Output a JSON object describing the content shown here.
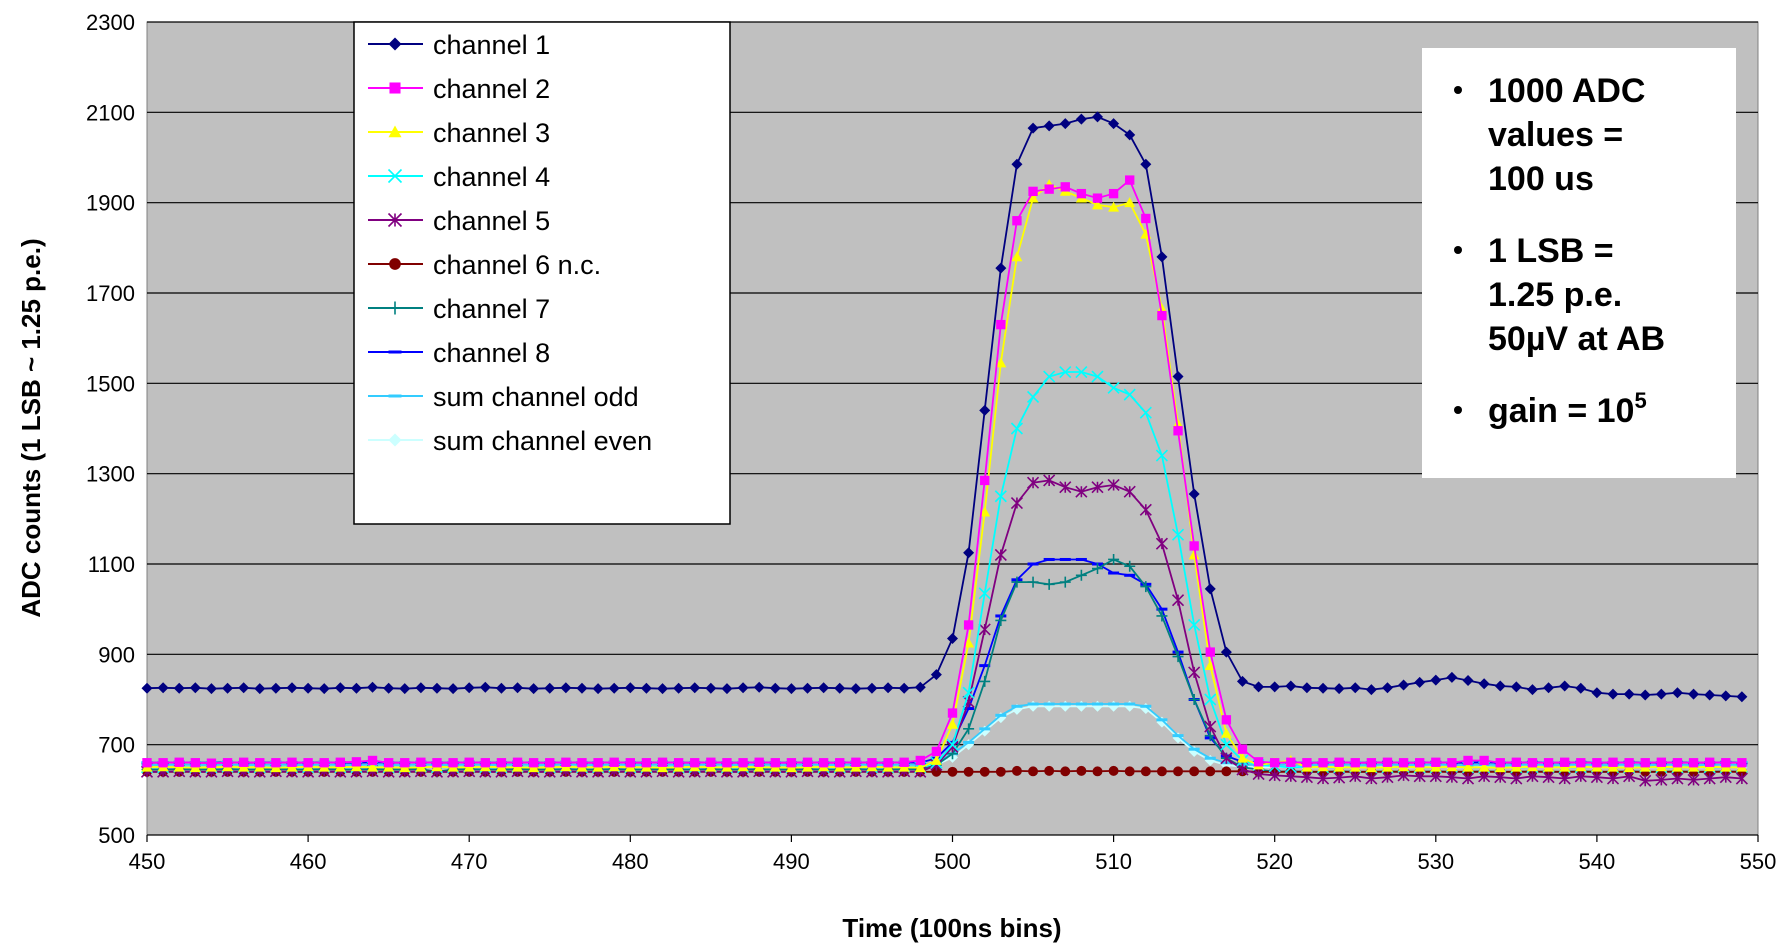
{
  "chart_data": {
    "type": "line",
    "xlabel": "Time (100ns bins)",
    "ylabel": "ADC counts (1 LSB ~ 1.25 p.e.)",
    "xlim": [
      450,
      550
    ],
    "ylim": [
      500,
      2300
    ],
    "xticks": [
      450,
      460,
      470,
      480,
      490,
      500,
      510,
      520,
      530,
      540,
      550
    ],
    "yticks": [
      500,
      700,
      900,
      1100,
      1300,
      1500,
      1700,
      1900,
      2100,
      2300
    ],
    "grid": "horizontal",
    "legend_position": "top-left",
    "x": [
      450,
      451,
      452,
      453,
      454,
      455,
      456,
      457,
      458,
      459,
      460,
      461,
      462,
      463,
      464,
      465,
      466,
      467,
      468,
      469,
      470,
      471,
      472,
      473,
      474,
      475,
      476,
      477,
      478,
      479,
      480,
      481,
      482,
      483,
      484,
      485,
      486,
      487,
      488,
      489,
      490,
      491,
      492,
      493,
      494,
      495,
      496,
      497,
      498,
      499,
      500,
      501,
      502,
      503,
      504,
      505,
      506,
      507,
      508,
      509,
      510,
      511,
      512,
      513,
      514,
      515,
      516,
      517,
      518,
      519,
      520,
      521,
      522,
      523,
      524,
      525,
      526,
      527,
      528,
      529,
      530,
      531,
      532,
      533,
      534,
      535,
      536,
      537,
      538,
      539,
      540,
      541,
      542,
      543,
      544,
      545,
      546,
      547,
      548,
      549
    ],
    "series": [
      {
        "name": "channel 1",
        "color": "#000080",
        "marker": "diamond",
        "values": [
          825,
          826,
          825,
          826,
          824,
          825,
          826,
          824,
          825,
          826,
          825,
          824,
          826,
          825,
          827,
          825,
          824,
          826,
          825,
          824,
          826,
          827,
          825,
          826,
          824,
          825,
          826,
          825,
          824,
          825,
          826,
          825,
          824,
          825,
          826,
          825,
          824,
          826,
          827,
          825,
          824,
          825,
          826,
          825,
          824,
          825,
          826,
          825,
          827,
          855,
          935,
          1125,
          1440,
          1755,
          1985,
          2065,
          2070,
          2075,
          2085,
          2090,
          2075,
          2050,
          1985,
          1780,
          1515,
          1255,
          1045,
          905,
          840,
          828,
          828,
          830,
          826,
          825,
          824,
          826,
          822,
          826,
          832,
          838,
          843,
          849,
          842,
          835,
          830,
          828,
          822,
          826,
          830,
          825,
          815,
          812,
          812,
          810,
          812,
          815,
          812,
          810,
          808,
          806
        ]
      },
      {
        "name": "channel 2",
        "color": "#FF00FF",
        "marker": "square",
        "values": [
          660,
          660,
          661,
          660,
          659,
          660,
          661,
          660,
          660,
          661,
          660,
          660,
          661,
          662,
          665,
          660,
          660,
          661,
          660,
          660,
          661,
          660,
          660,
          661,
          660,
          660,
          661,
          660,
          660,
          661,
          660,
          660,
          661,
          660,
          660,
          661,
          660,
          660,
          661,
          660,
          660,
          661,
          660,
          660,
          661,
          660,
          660,
          661,
          665,
          685,
          770,
          965,
          1285,
          1630,
          1860,
          1925,
          1930,
          1935,
          1920,
          1910,
          1920,
          1950,
          1865,
          1650,
          1395,
          1140,
          905,
          755,
          690,
          662,
          660,
          661,
          660,
          660,
          661,
          660,
          660,
          661,
          660,
          660,
          661,
          660,
          665,
          665,
          660,
          661,
          660,
          660,
          661,
          660,
          660,
          661,
          660,
          660,
          661,
          660,
          660,
          661,
          660,
          660
        ]
      },
      {
        "name": "channel 3",
        "color": "#FFFF00",
        "marker": "triangle",
        "values": [
          650,
          651,
          650,
          649,
          650,
          651,
          650,
          650,
          649,
          650,
          651,
          650,
          650,
          651,
          650,
          650,
          649,
          650,
          651,
          650,
          650,
          651,
          650,
          650,
          649,
          650,
          651,
          650,
          650,
          651,
          650,
          650,
          649,
          650,
          651,
          650,
          650,
          651,
          650,
          650,
          649,
          650,
          651,
          650,
          650,
          651,
          650,
          650,
          649,
          665,
          745,
          925,
          1215,
          1545,
          1780,
          1910,
          1940,
          1925,
          1910,
          1895,
          1890,
          1900,
          1830,
          1665,
          1410,
          1120,
          875,
          725,
          670,
          655,
          660,
          665,
          650,
          651,
          650,
          650,
          649,
          650,
          651,
          650,
          650,
          651,
          650,
          650,
          649,
          650,
          651,
          650,
          650,
          651,
          650,
          650,
          649,
          650,
          651,
          650,
          650,
          651,
          650,
          650
        ]
      },
      {
        "name": "channel 4",
        "color": "#00FFFF",
        "marker": "x",
        "values": [
          650,
          650,
          651,
          650,
          650,
          651,
          650,
          650,
          651,
          650,
          650,
          651,
          650,
          650,
          651,
          650,
          650,
          651,
          650,
          650,
          651,
          650,
          650,
          651,
          650,
          650,
          651,
          650,
          650,
          651,
          650,
          650,
          651,
          650,
          650,
          651,
          650,
          650,
          651,
          650,
          650,
          651,
          650,
          650,
          651,
          650,
          650,
          651,
          650,
          660,
          700,
          815,
          1035,
          1250,
          1400,
          1470,
          1515,
          1525,
          1525,
          1515,
          1490,
          1475,
          1435,
          1340,
          1165,
          965,
          800,
          700,
          665,
          655,
          652,
          650,
          651,
          650,
          650,
          651,
          650,
          650,
          651,
          650,
          650,
          651,
          650,
          650,
          651,
          650,
          650,
          651,
          650,
          650,
          651,
          650,
          650,
          651,
          650,
          650,
          651,
          650,
          650,
          651
        ]
      },
      {
        "name": "channel 5",
        "color": "#800080",
        "marker": "star",
        "values": [
          640,
          640,
          641,
          640,
          640,
          641,
          640,
          640,
          641,
          640,
          640,
          641,
          640,
          640,
          641,
          640,
          640,
          641,
          640,
          640,
          641,
          640,
          640,
          641,
          640,
          640,
          641,
          640,
          640,
          641,
          640,
          640,
          641,
          640,
          640,
          641,
          640,
          640,
          641,
          640,
          640,
          641,
          640,
          640,
          641,
          640,
          640,
          641,
          640,
          655,
          695,
          795,
          955,
          1120,
          1235,
          1280,
          1285,
          1270,
          1260,
          1270,
          1275,
          1260,
          1220,
          1145,
          1020,
          860,
          740,
          670,
          645,
          635,
          632,
          630,
          628,
          625,
          627,
          630,
          625,
          628,
          632,
          630,
          630,
          628,
          625,
          630,
          628,
          625,
          630,
          628,
          625,
          630,
          628,
          625,
          630,
          620,
          622,
          625,
          622,
          625,
          628,
          625
        ]
      },
      {
        "name": "channel 6 n.c.",
        "color": "#800000",
        "marker": "circle",
        "values": [
          640,
          640,
          640,
          640,
          640,
          640,
          640,
          640,
          640,
          640,
          640,
          640,
          640,
          640,
          640,
          640,
          640,
          640,
          640,
          640,
          640,
          640,
          640,
          640,
          640,
          640,
          640,
          640,
          640,
          640,
          640,
          640,
          640,
          640,
          640,
          640,
          640,
          640,
          640,
          640,
          640,
          640,
          640,
          640,
          640,
          640,
          640,
          640,
          640,
          640,
          640,
          640,
          640,
          640,
          642,
          641,
          642,
          641,
          642,
          641,
          642,
          641,
          641,
          641,
          641,
          641,
          641,
          641,
          641,
          640,
          640,
          640,
          640,
          640,
          640,
          640,
          640,
          640,
          640,
          640,
          640,
          640,
          640,
          640,
          640,
          640,
          640,
          640,
          640,
          640,
          640,
          640,
          640,
          640,
          640,
          640,
          640,
          640,
          640,
          640
        ]
      },
      {
        "name": "channel 7",
        "color": "#008080",
        "marker": "plus",
        "values": [
          645,
          645,
          646,
          645,
          645,
          646,
          645,
          645,
          646,
          645,
          645,
          646,
          645,
          645,
          646,
          645,
          645,
          646,
          640,
          645,
          646,
          645,
          645,
          646,
          645,
          645,
          646,
          645,
          645,
          646,
          645,
          645,
          646,
          645,
          645,
          646,
          645,
          645,
          646,
          645,
          645,
          646,
          645,
          645,
          646,
          645,
          645,
          646,
          645,
          655,
          680,
          735,
          840,
          975,
          1060,
          1060,
          1055,
          1060,
          1075,
          1090,
          1110,
          1095,
          1050,
          985,
          895,
          800,
          720,
          670,
          650,
          645,
          640,
          641,
          640,
          640,
          641,
          640,
          640,
          641,
          640,
          640,
          641,
          640,
          640,
          641,
          640,
          640,
          641,
          640,
          640,
          641,
          640,
          640,
          641,
          640,
          640,
          641,
          640,
          640,
          641,
          640
        ]
      },
      {
        "name": "channel 8",
        "color": "#0000FF",
        "marker": "dash",
        "values": [
          660,
          660,
          661,
          660,
          660,
          661,
          660,
          660,
          661,
          660,
          660,
          661,
          660,
          660,
          661,
          660,
          660,
          661,
          660,
          660,
          661,
          660,
          660,
          661,
          660,
          660,
          661,
          660,
          660,
          661,
          660,
          660,
          661,
          660,
          660,
          661,
          660,
          660,
          661,
          660,
          660,
          661,
          660,
          660,
          661,
          660,
          660,
          661,
          660,
          670,
          705,
          780,
          875,
          985,
          1065,
          1100,
          1110,
          1110,
          1110,
          1100,
          1080,
          1075,
          1055,
          1000,
          905,
          800,
          715,
          675,
          662,
          660,
          660,
          661,
          660,
          660,
          661,
          660,
          660,
          661,
          660,
          660,
          661,
          660,
          660,
          661,
          660,
          660,
          661,
          660,
          660,
          661,
          660,
          660,
          661,
          660,
          660,
          661,
          660,
          660,
          661,
          660
        ]
      },
      {
        "name": "sum channel odd",
        "color": "#33CCFF",
        "marker": "dash",
        "values": [
          655,
          655,
          656,
          655,
          655,
          656,
          655,
          655,
          656,
          655,
          655,
          656,
          655,
          655,
          656,
          655,
          655,
          656,
          655,
          655,
          656,
          655,
          655,
          656,
          655,
          655,
          656,
          655,
          655,
          656,
          655,
          655,
          656,
          655,
          655,
          656,
          655,
          655,
          656,
          655,
          655,
          656,
          655,
          655,
          656,
          655,
          655,
          656,
          655,
          660,
          680,
          705,
          735,
          765,
          785,
          790,
          790,
          790,
          790,
          790,
          790,
          790,
          785,
          755,
          720,
          690,
          670,
          660,
          656,
          655,
          655,
          656,
          655,
          655,
          656,
          655,
          655,
          656,
          655,
          655,
          656,
          655,
          655,
          656,
          655,
          655,
          656,
          655,
          655,
          656,
          655,
          655,
          656,
          655,
          655,
          656,
          655,
          655,
          656,
          655
        ]
      },
      {
        "name": "sum channel even",
        "color": "#CCFFFF",
        "marker": "diamond",
        "values": [
          650,
          650,
          651,
          650,
          650,
          651,
          650,
          650,
          651,
          650,
          650,
          651,
          650,
          650,
          651,
          650,
          650,
          651,
          650,
          650,
          651,
          650,
          650,
          651,
          650,
          650,
          651,
          650,
          650,
          651,
          650,
          650,
          651,
          650,
          650,
          651,
          650,
          650,
          651,
          650,
          650,
          651,
          650,
          650,
          651,
          650,
          650,
          651,
          650,
          655,
          672,
          700,
          730,
          760,
          778,
          785,
          785,
          785,
          785,
          785,
          785,
          785,
          780,
          750,
          715,
          685,
          665,
          655,
          651,
          650,
          650,
          651,
          650,
          650,
          651,
          650,
          650,
          651,
          650,
          650,
          651,
          650,
          650,
          651,
          650,
          650,
          651,
          650,
          650,
          651,
          650,
          650,
          651,
          650,
          650,
          651,
          650,
          650,
          651,
          650
        ]
      }
    ]
  },
  "notes": [
    {
      "lines": [
        "1000 ADC",
        "values =",
        "100 us"
      ]
    },
    {
      "lines": [
        "1 LSB =",
        " 1.25 p.e.",
        "50µV at AB"
      ]
    },
    {
      "lines": [
        "gain = 10"
      ],
      "sup": "5"
    }
  ],
  "colors": {
    "plot_background": "#C0C0C0",
    "grid": "#000000"
  }
}
